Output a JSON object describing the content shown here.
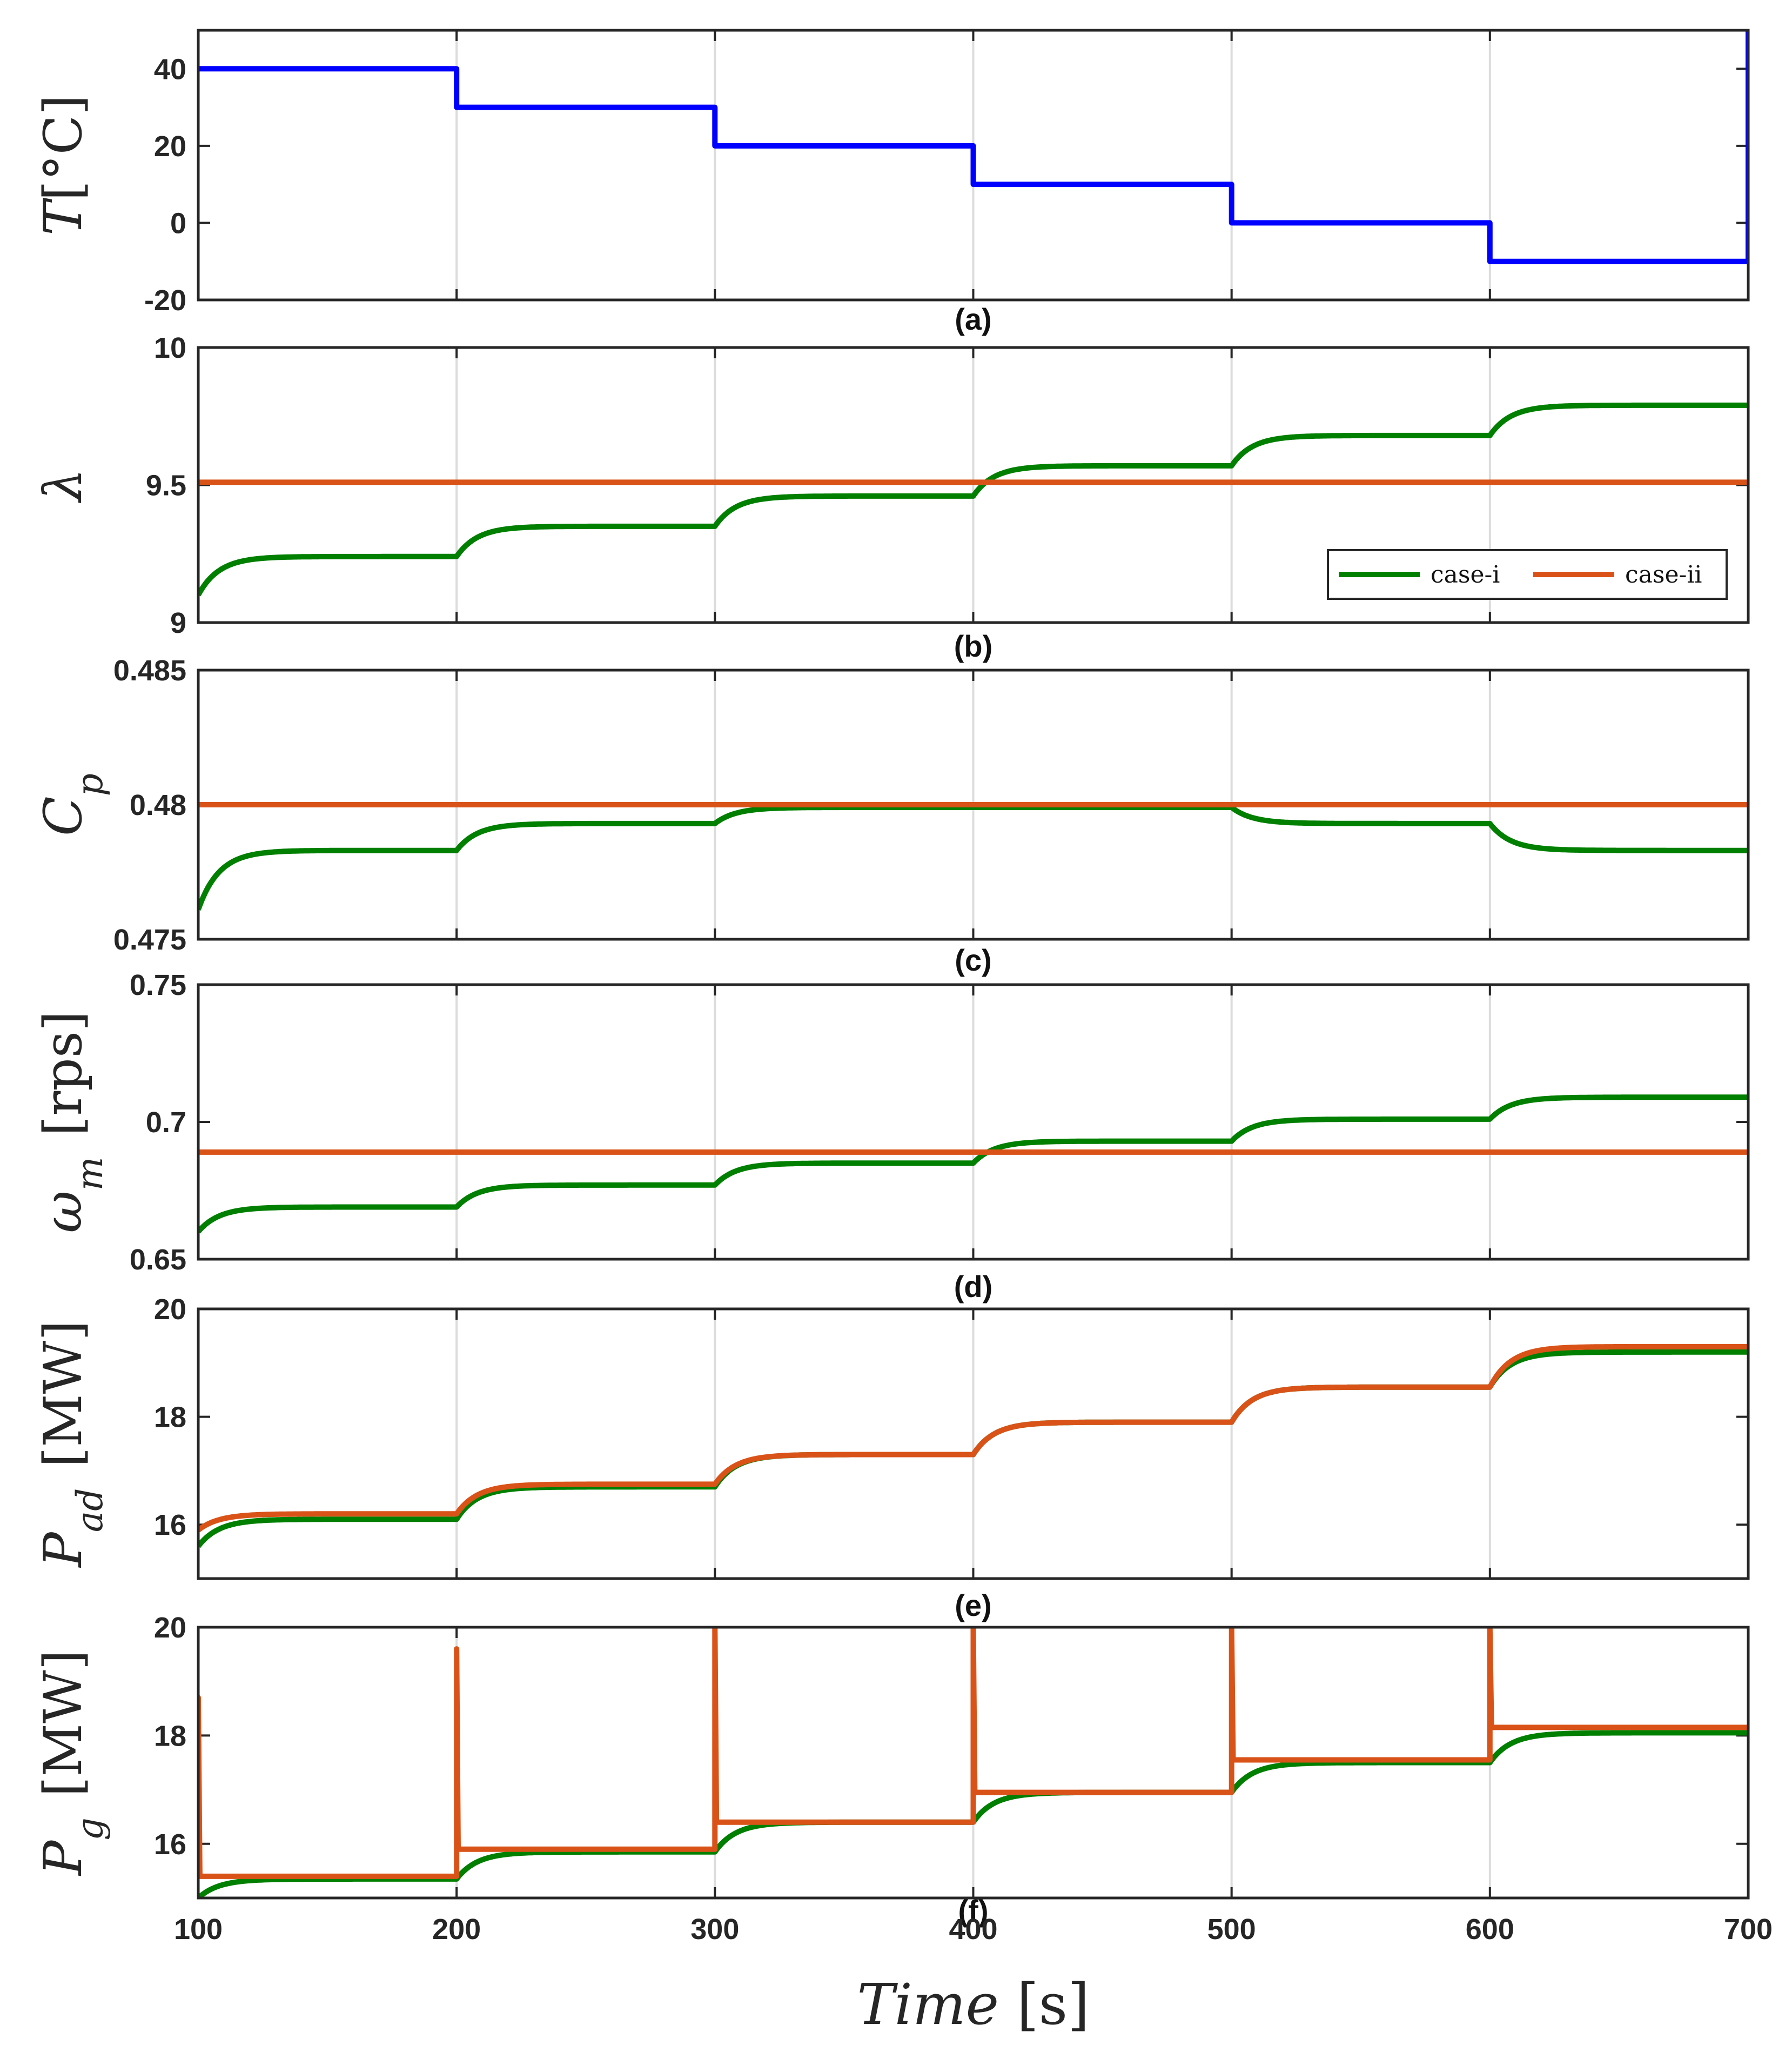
{
  "chart_data": [
    {
      "type": "line",
      "caption": "(a)",
      "ylabel": "T[°C]",
      "xlim": [
        100,
        700
      ],
      "ylim": [
        -20,
        50
      ],
      "yticks": [
        "-20",
        "0",
        "20",
        "40"
      ],
      "series": [
        {
          "name": "T",
          "color": "#0000ff",
          "x": [
            100,
            200,
            200,
            300,
            300,
            400,
            400,
            500,
            500,
            600,
            600,
            700
          ],
          "y": [
            40,
            40,
            30,
            30,
            20,
            20,
            10,
            10,
            0,
            0,
            -10,
            -10
          ]
        }
      ]
    },
    {
      "type": "line",
      "caption": "(b)",
      "ylabel": "λ",
      "xlim": [
        100,
        700
      ],
      "ylim": [
        9,
        10
      ],
      "yticks": [
        "9",
        "9.5",
        "10"
      ],
      "legend": {
        "placement": "bottom-right",
        "entries": [
          "case-i",
          "case-ii"
        ]
      },
      "series": [
        {
          "name": "case-i",
          "color": "#007f00",
          "step_start": 9.1,
          "levels": [
            9.24,
            9.35,
            9.46,
            9.57,
            9.68,
            9.79
          ]
        },
        {
          "name": "case-ii",
          "color": "#d95319",
          "constant": 9.51
        }
      ]
    },
    {
      "type": "line",
      "caption": "(c)",
      "ylabel": "C_p",
      "xlim": [
        100,
        700
      ],
      "ylim": [
        0.475,
        0.485
      ],
      "yticks": [
        "0.475",
        "0.48",
        "0.485"
      ],
      "series": [
        {
          "name": "case-i",
          "color": "#007f00",
          "step_start": 0.4761,
          "levels": [
            0.4783,
            0.4793,
            0.4799,
            0.4799,
            0.4793,
            0.4783
          ]
        },
        {
          "name": "case-ii",
          "color": "#d95319",
          "constant": 0.48
        }
      ]
    },
    {
      "type": "line",
      "caption": "(d)",
      "ylabel": "ω_m [rps]",
      "xlim": [
        100,
        700
      ],
      "ylim": [
        0.65,
        0.75
      ],
      "yticks": [
        "0.65",
        "0.7",
        "0.75"
      ],
      "series": [
        {
          "name": "case-i",
          "color": "#007f00",
          "step_start": 0.66,
          "levels": [
            0.669,
            0.677,
            0.685,
            0.693,
            0.701,
            0.709
          ]
        },
        {
          "name": "case-ii",
          "color": "#d95319",
          "constant": 0.689
        }
      ]
    },
    {
      "type": "line",
      "caption": "(e)",
      "ylabel": "P_ad [MW]",
      "xlim": [
        100,
        700
      ],
      "ylim": [
        15,
        20
      ],
      "yticks": [
        "16",
        "18",
        "20"
      ],
      "series": [
        {
          "name": "case-i",
          "color": "#007f00",
          "step_start": 15.6,
          "levels": [
            16.1,
            16.7,
            17.3,
            17.9,
            18.55,
            19.2
          ]
        },
        {
          "name": "case-ii",
          "color": "#d95319",
          "step_start": 15.9,
          "levels": [
            16.2,
            16.75,
            17.3,
            17.9,
            18.55,
            19.3
          ]
        }
      ]
    },
    {
      "type": "line",
      "caption": "(f)",
      "ylabel": "P_g [MW]",
      "xlabel": "Time [s]",
      "xlim": [
        100,
        700
      ],
      "ylim": [
        15,
        20
      ],
      "yticks": [
        "16",
        "18",
        "20"
      ],
      "xticks": [
        "100",
        "200",
        "300",
        "400",
        "500",
        "600",
        "700"
      ],
      "series": [
        {
          "name": "case-i",
          "color": "#007f00",
          "step_start": 15.0,
          "levels": [
            15.35,
            15.85,
            16.4,
            16.95,
            17.5,
            18.05
          ]
        },
        {
          "name": "case-ii",
          "color": "#d95319",
          "levels": [
            15.4,
            15.9,
            16.4,
            16.95,
            17.55,
            18.15
          ],
          "spikes": [
            18.7,
            19.6,
            20,
            20,
            20,
            20
          ]
        }
      ]
    }
  ]
}
